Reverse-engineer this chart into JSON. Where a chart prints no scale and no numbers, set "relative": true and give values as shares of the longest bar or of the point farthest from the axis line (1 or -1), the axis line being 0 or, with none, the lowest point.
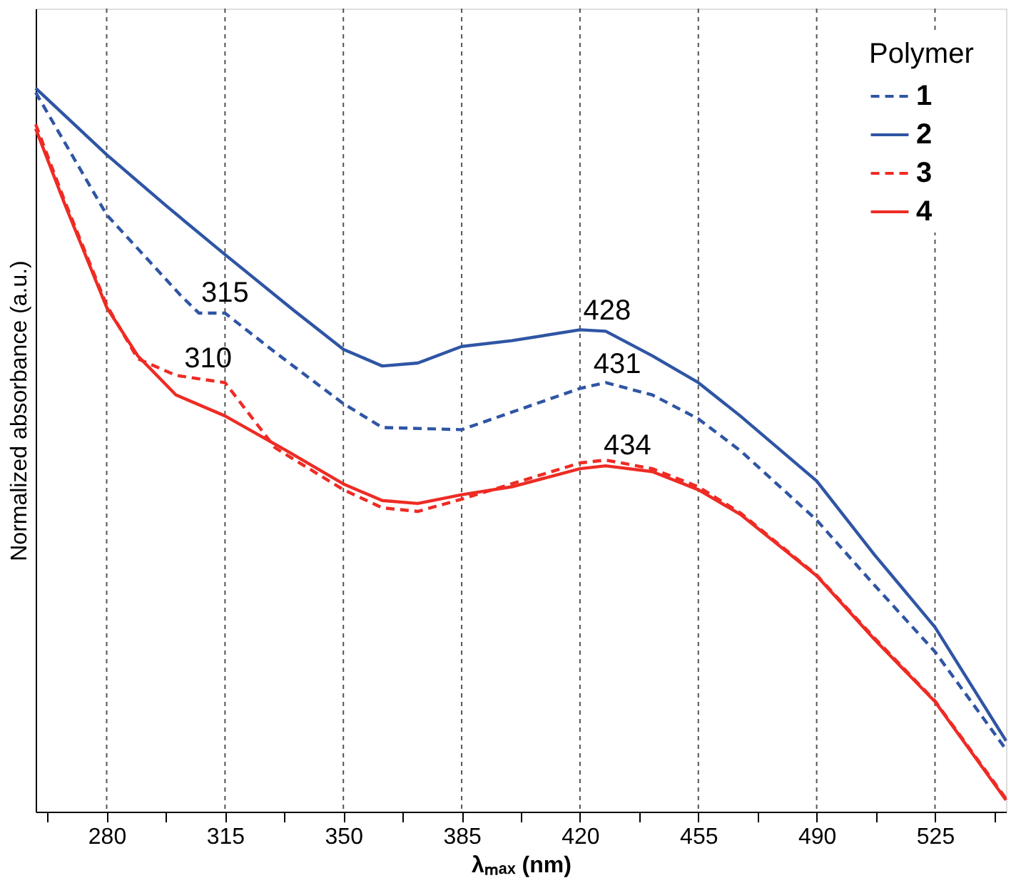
{
  "chart_data": {
    "type": "line",
    "relative": true,
    "xlabel": "λₘₐₓ (nm)",
    "ylabel": "Normalized absorbance (a.u.)",
    "legend_title": "Polymer",
    "legend": "top right",
    "grid": "x",
    "xlim": [
      259,
      546
    ],
    "xticks": [
      {
        "value": 262.5,
        "label": null
      },
      280,
      {
        "value": 297.5,
        "label": null
      },
      315,
      {
        "value": 332.5,
        "label": null
      },
      350,
      {
        "value": 367.5,
        "label": null
      },
      385,
      {
        "value": 402.5,
        "label": null
      },
      420,
      {
        "value": 437.5,
        "label": null
      },
      455,
      {
        "value": 472.5,
        "label": null
      },
      490,
      {
        "value": 507.5,
        "label": null
      },
      525,
      {
        "value": 542.5,
        "label": null
      }
    ],
    "series": [
      {
        "name": "1",
        "color": "#2f55a4",
        "line_style": "dashed",
        "x": [
          259,
          280,
          302,
          307.3,
          315,
          329.8,
          350,
          361.5,
          385,
          420,
          427.6,
          441.4,
          455,
          467.4,
          490,
          507.1,
          525,
          546
        ],
        "values": [
          0.994,
          0.825,
          0.713,
          0.689,
          0.689,
          0.635,
          0.564,
          0.531,
          0.528,
          0.585,
          0.593,
          0.576,
          0.543,
          0.499,
          0.403,
          0.313,
          0.221,
          0.086
        ]
      },
      {
        "name": "2",
        "color": "#2f55a4",
        "line_style": "solid",
        "x": [
          259,
          280,
          297.7,
          315,
          335.3,
          350,
          361.5,
          372,
          385,
          399.8,
          420,
          427.6,
          441.4,
          455,
          467.4,
          490,
          507.1,
          525,
          546
        ],
        "values": [
          1.0,
          0.908,
          0.837,
          0.77,
          0.693,
          0.639,
          0.616,
          0.62,
          0.643,
          0.651,
          0.666,
          0.664,
          0.63,
          0.593,
          0.547,
          0.457,
          0.355,
          0.255,
          0.098
        ]
      },
      {
        "name": "3",
        "color": "#ee2b24",
        "line_style": "dashed",
        "x": [
          259,
          267.5,
          280,
          289.2,
          300.5,
          315,
          329.8,
          350,
          361.5,
          372,
          385,
          420,
          427.6,
          441.4,
          455,
          467.4,
          490,
          507.1,
          525,
          546
        ],
        "values": [
          0.95,
          0.845,
          0.7,
          0.626,
          0.603,
          0.593,
          0.503,
          0.445,
          0.42,
          0.415,
          0.432,
          0.482,
          0.486,
          0.474,
          0.449,
          0.413,
          0.327,
          0.24,
          0.153,
          0.018
        ]
      },
      {
        "name": "4",
        "color": "#ee2b24",
        "line_style": "solid",
        "x": [
          259,
          267.5,
          280,
          289.2,
          300.5,
          315,
          333.2,
          350,
          361.5,
          372,
          385,
          399.8,
          420,
          427.6,
          441.4,
          455,
          467.4,
          490,
          507.1,
          525,
          546
        ],
        "values": [
          0.944,
          0.841,
          0.697,
          0.63,
          0.576,
          0.547,
          0.499,
          0.453,
          0.43,
          0.426,
          0.438,
          0.449,
          0.474,
          0.478,
          0.47,
          0.445,
          0.411,
          0.326,
          0.238,
          0.152,
          0.016
        ]
      }
    ],
    "annotations": [
      {
        "text": "315",
        "x": 315,
        "y": 0.689
      },
      {
        "text": "310",
        "x": 310,
        "y": 0.598
      },
      {
        "text": "428",
        "x": 428,
        "y": 0.664
      },
      {
        "text": "431",
        "x": 431,
        "y": 0.59
      },
      {
        "text": "434",
        "x": 434,
        "y": 0.478
      }
    ]
  }
}
